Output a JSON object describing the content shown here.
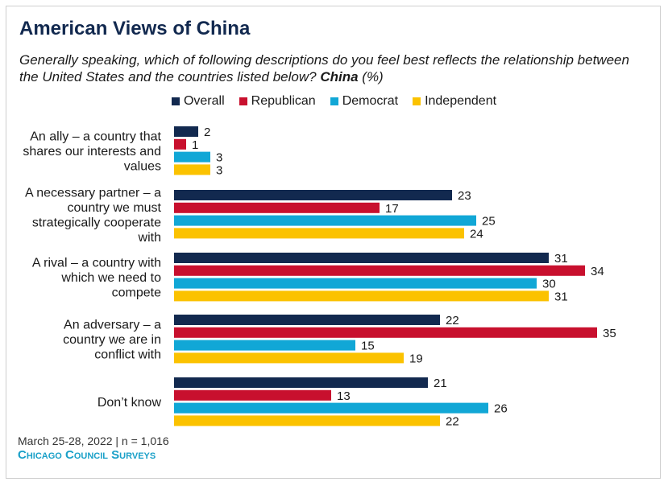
{
  "title": "American Views of China",
  "subtitle_main": "Generally speaking, which of following descriptions do you feel best reflects the relationship between the United States and the countries listed below?",
  "subtitle_bold": "China",
  "subtitle_suffix": "(%)",
  "footer": {
    "date": "March 25-28, 2022 | n = 1,016",
    "brand": "Chicago Council Surveys"
  },
  "colors": {
    "Overall": "#12294f",
    "Republican": "#c8102e",
    "Democrat": "#11a7d6",
    "Independent": "#fbc200"
  },
  "chart_data": {
    "type": "bar",
    "orientation": "horizontal",
    "categories": [
      [
        "An ally – a country that",
        "shares our interests and",
        "values"
      ],
      [
        "A necessary partner – a",
        "country we must",
        "strategically cooperate",
        "with"
      ],
      [
        "A rival – a country with",
        "which we need to",
        "compete"
      ],
      [
        "An adversary – a",
        "country we are in",
        "conflict with"
      ],
      [
        "Don’t know"
      ]
    ],
    "series": [
      {
        "name": "Overall",
        "values": [
          2,
          23,
          31,
          22,
          21
        ]
      },
      {
        "name": "Republican",
        "values": [
          1,
          17,
          34,
          35,
          13
        ]
      },
      {
        "name": "Democrat",
        "values": [
          3,
          25,
          30,
          15,
          26
        ]
      },
      {
        "name": "Independent",
        "values": [
          3,
          24,
          31,
          19,
          22
        ]
      }
    ],
    "legend_position": "top-center",
    "grid": false,
    "xlim": [
      0,
      35
    ]
  }
}
